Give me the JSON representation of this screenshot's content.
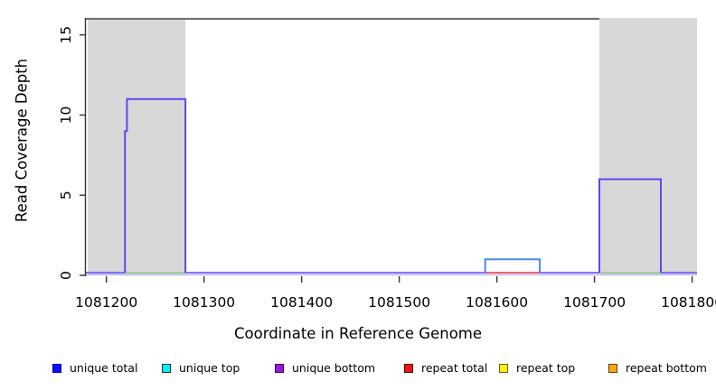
{
  "chart_data": {
    "type": "line",
    "subtype": "genome-read-coverage-step-plot",
    "title": "",
    "xlabel": "Coordinate in Reference Genome",
    "ylabel": "Read Coverage Depth",
    "xlim": [
      1081179,
      1081805
    ],
    "ylim": [
      0,
      16.05
    ],
    "x_ticks": [
      1081200,
      1081300,
      1081400,
      1081500,
      1081600,
      1081700,
      1081800
    ],
    "y_ticks": [
      0,
      5,
      10,
      15
    ],
    "grid": false,
    "legend_position": "bottom",
    "shaded_regions": [
      {
        "name": "repeat-region-left",
        "start": 1081181,
        "end": 1081281,
        "fill": "#d8d8d8"
      },
      {
        "name": "repeat-region-right",
        "start": 1081705,
        "end": 1081805,
        "fill": "#d8d8d8"
      }
    ],
    "top_boundary_line": {
      "depth": 16,
      "start": 1081179,
      "end": 1081705,
      "color": "#6a6a6a"
    },
    "coverage_blocks": [
      {
        "name": "unique-coverage-block-1",
        "color": "#6344ef",
        "points": [
          [
            1081219,
            0
          ],
          [
            1081219,
            9
          ],
          [
            1081221,
            9
          ],
          [
            1081221,
            11
          ],
          [
            1081281,
            11
          ],
          [
            1081281,
            0
          ]
        ]
      },
      {
        "name": "unique-top-coverage-block",
        "color": "#4f86ef",
        "points": [
          [
            1081588,
            0
          ],
          [
            1081588,
            1
          ],
          [
            1081644,
            1
          ],
          [
            1081644,
            0
          ]
        ]
      },
      {
        "name": "unique-coverage-block-2",
        "color": "#6344ef",
        "points": [
          [
            1081705,
            0
          ],
          [
            1081705,
            6
          ],
          [
            1081768,
            6
          ],
          [
            1081768,
            0
          ]
        ]
      }
    ],
    "baseline_segments": [
      {
        "start": 1081179,
        "end": 1081219,
        "color": "#6f63f5"
      },
      {
        "start": 1081219,
        "end": 1081281,
        "color": "#8bd48b"
      },
      {
        "start": 1081281,
        "end": 1081588,
        "color": "#6f63f5"
      },
      {
        "start": 1081588,
        "end": 1081644,
        "color": "#e5505e"
      },
      {
        "start": 1081644,
        "end": 1081705,
        "color": "#6f63f5"
      },
      {
        "start": 1081705,
        "end": 1081768,
        "color": "#8bd48b"
      },
      {
        "start": 1081768,
        "end": 1081805,
        "color": "#6f63f5"
      }
    ],
    "baseline_underlay": {
      "start": 1081179,
      "end": 1081805,
      "color": "#c7b2f0"
    },
    "axis_color": "#333333",
    "tick_label_color": "#000000"
  },
  "legend": {
    "items": [
      {
        "label": "unique total",
        "color": "#0d0dff",
        "border": "#0000b4"
      },
      {
        "label": "unique top",
        "color": "#00f0f0",
        "border": "#123246"
      },
      {
        "label": "unique bottom",
        "color": "#9a16e0",
        "border": "#320a50"
      },
      {
        "label": "repeat total",
        "color": "#f01414",
        "border": "#500a0a"
      },
      {
        "label": "repeat top",
        "color": "#fff014",
        "border": "#64640a"
      },
      {
        "label": "repeat bottom",
        "color": "#ffa514",
        "border": "#644008"
      }
    ]
  }
}
